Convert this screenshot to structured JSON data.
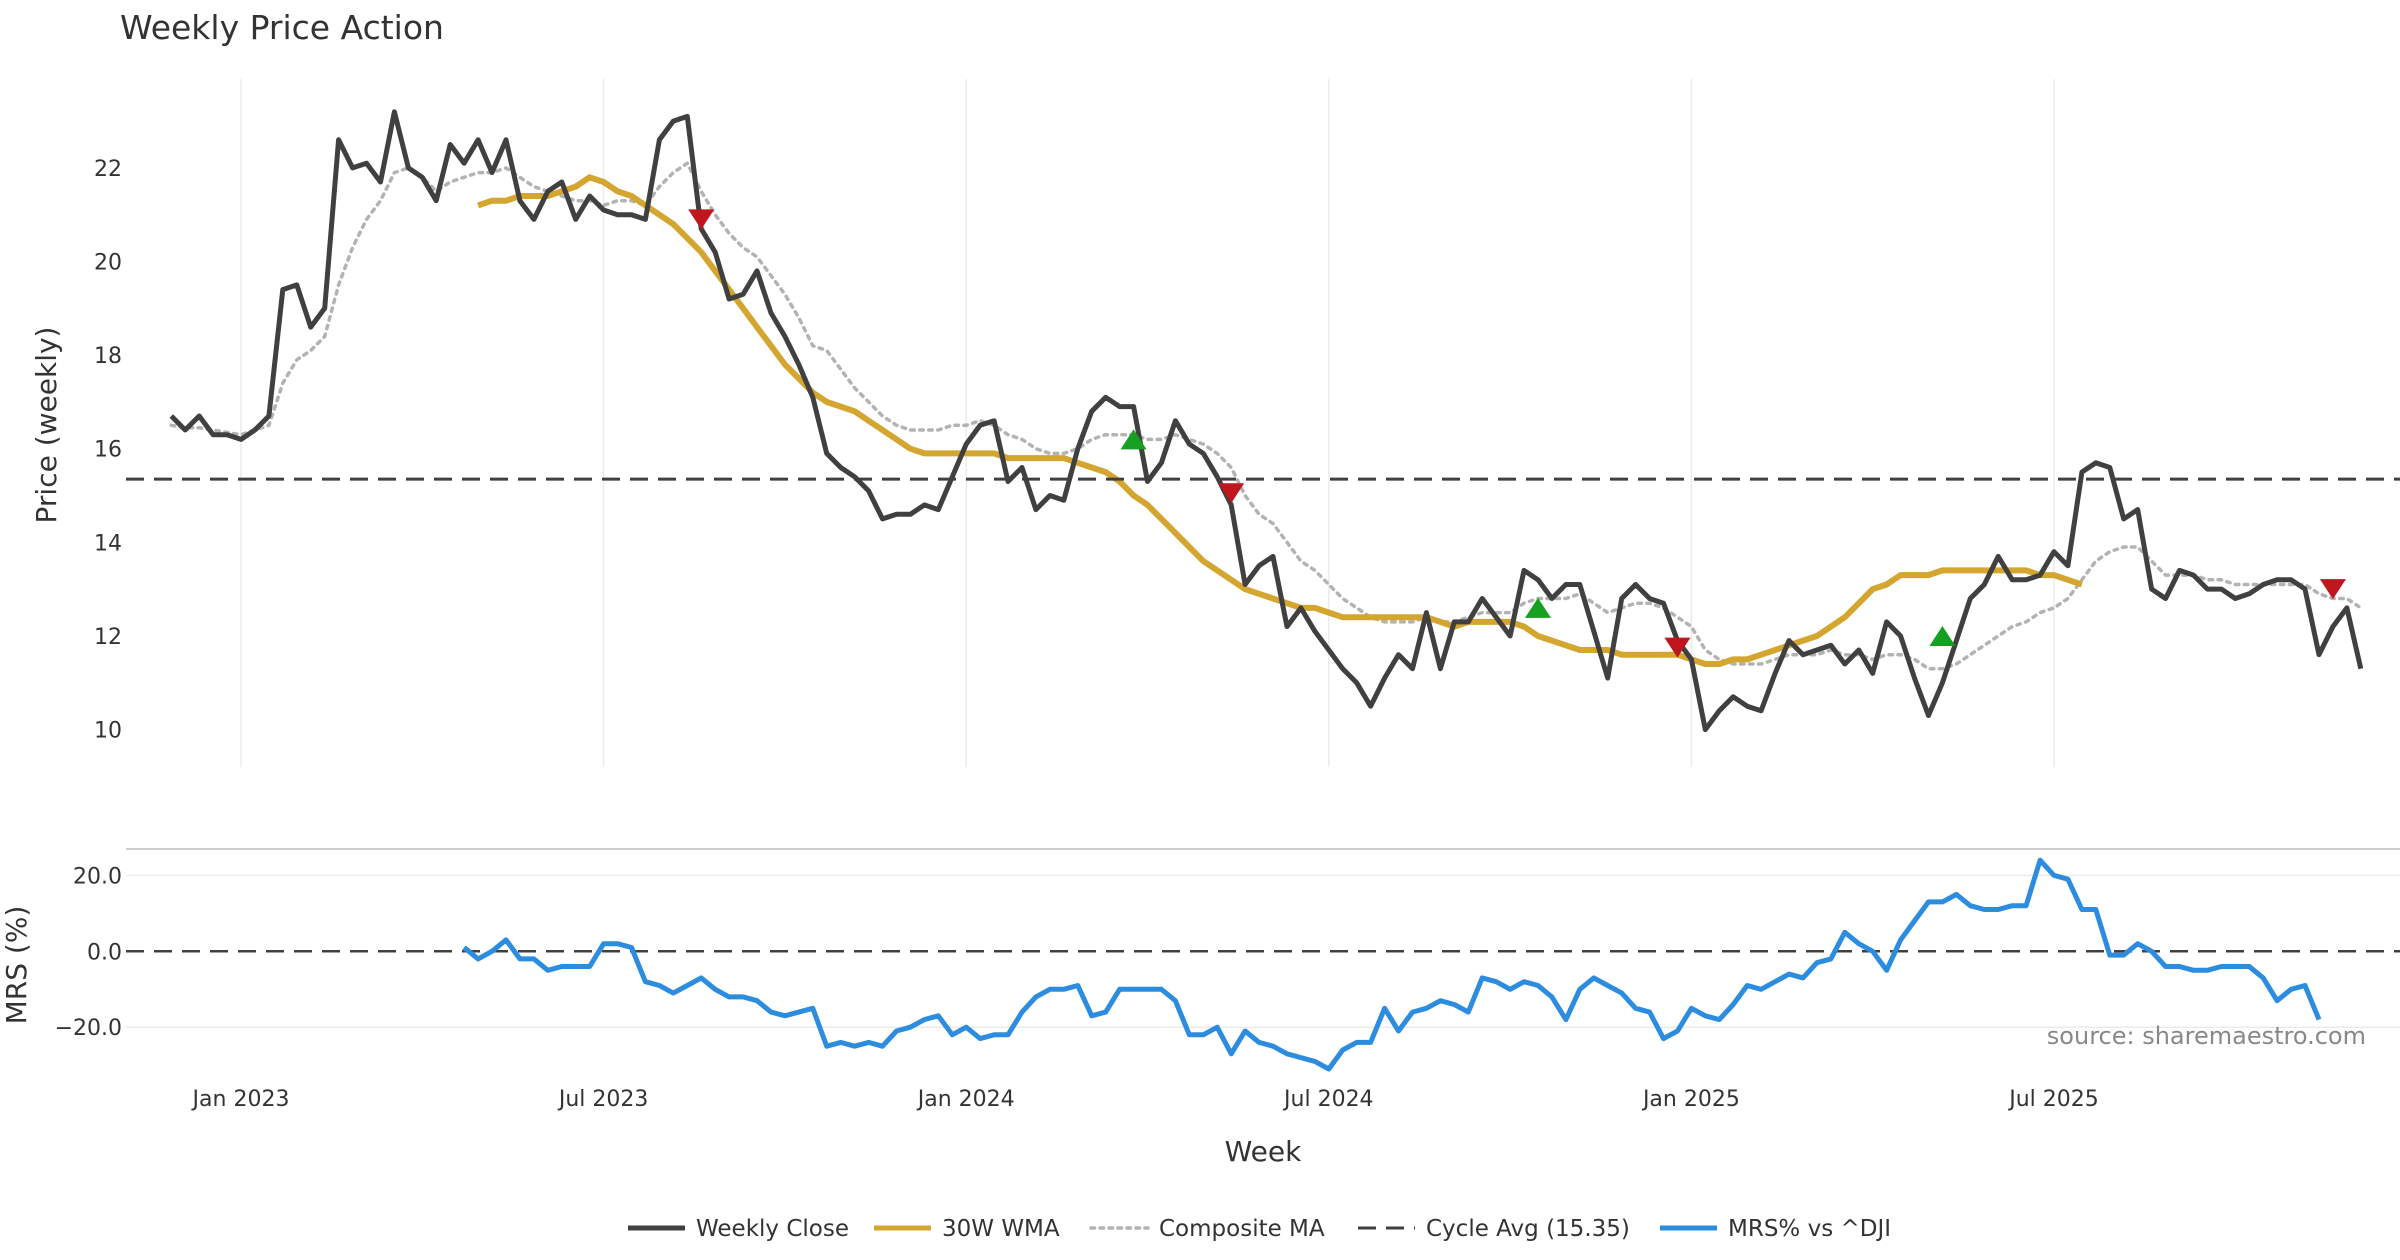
{
  "chart_data": [
    {
      "type": "line",
      "title": "Weekly Price Action",
      "ylabel": "Price (weekly)",
      "xlabel": "Week",
      "ylim": [
        9.2,
        23.9
      ],
      "yticks": [
        10,
        12,
        14,
        16,
        18,
        20,
        22
      ],
      "xticks": [
        {
          "label": "Jan 2023",
          "date": "2023-01-02"
        },
        {
          "label": "Jul 2023",
          "date": "2023-07-03"
        },
        {
          "label": "Jan 2024",
          "date": "2024-01-01"
        },
        {
          "label": "Jul 2024",
          "date": "2024-07-01"
        },
        {
          "label": "Jan 2025",
          "date": "2024-12-30"
        },
        {
          "label": "Jul 2025",
          "date": "2025-06-30"
        }
      ],
      "grid": true,
      "cycle_avg": 15.35,
      "series": [
        {
          "name": "Weekly Close",
          "color": "#404040",
          "start": "2022-11-28",
          "values": [
            16.7,
            16.4,
            16.7,
            16.3,
            16.3,
            16.2,
            16.4,
            16.7,
            19.4,
            19.5,
            18.6,
            19.0,
            22.6,
            22.0,
            22.1,
            21.7,
            23.2,
            22.0,
            21.8,
            21.3,
            22.5,
            22.1,
            22.6,
            21.9,
            22.6,
            21.3,
            20.9,
            21.5,
            21.7,
            20.9,
            21.4,
            21.1,
            21.0,
            21.0,
            20.9,
            22.6,
            23.0,
            23.1,
            20.7,
            20.2,
            19.2,
            19.3,
            19.8,
            18.9,
            18.4,
            17.8,
            17.1,
            15.9,
            15.6,
            15.4,
            15.1,
            14.5,
            14.6,
            14.6,
            14.8,
            14.7,
            15.4,
            16.1,
            16.5,
            16.6,
            15.3,
            15.6,
            14.7,
            15.0,
            14.9,
            16.0,
            16.8,
            17.1,
            16.9,
            16.9,
            15.3,
            15.7,
            16.6,
            16.1,
            15.9,
            15.4,
            14.8,
            13.1,
            13.5,
            13.7,
            12.2,
            12.6,
            12.1,
            11.7,
            11.3,
            11.0,
            10.5,
            11.1,
            11.6,
            11.3,
            12.5,
            11.3,
            12.3,
            12.3,
            12.8,
            12.4,
            12.0,
            13.4,
            13.2,
            12.8,
            13.1,
            13.1,
            12.1,
            11.1,
            12.8,
            13.1,
            12.8,
            12.7,
            11.9,
            11.5,
            10.0,
            10.4,
            10.7,
            10.5,
            10.4,
            11.2,
            11.9,
            11.6,
            11.7,
            11.8,
            11.4,
            11.7,
            11.2,
            12.3,
            12.0,
            11.1,
            10.3,
            11.0,
            11.9,
            12.8,
            13.1,
            13.7,
            13.2,
            13.2,
            13.3,
            13.8,
            13.5,
            15.5,
            15.7,
            15.6,
            14.5,
            14.7,
            13.0,
            12.8,
            13.4,
            13.3,
            13.0,
            13.0,
            12.8,
            12.9,
            13.1,
            13.2,
            13.2,
            13.0,
            11.6,
            12.2,
            12.6,
            11.3
          ]
        },
        {
          "name": "30W WMA",
          "color": "#D4A52F",
          "start": "2023-05-01",
          "values": [
            21.2,
            21.3,
            21.3,
            21.4,
            21.4,
            21.4,
            21.5,
            21.6,
            21.8,
            21.7,
            21.5,
            21.4,
            21.2,
            21.0,
            20.8,
            20.5,
            20.2,
            19.8,
            19.4,
            19.0,
            18.6,
            18.2,
            17.8,
            17.5,
            17.2,
            17.0,
            16.9,
            16.8,
            16.6,
            16.4,
            16.2,
            16.0,
            15.9,
            15.9,
            15.9,
            15.9,
            15.9,
            15.9,
            15.8,
            15.8,
            15.8,
            15.8,
            15.8,
            15.7,
            15.6,
            15.5,
            15.3,
            15.0,
            14.8,
            14.5,
            14.2,
            13.9,
            13.6,
            13.4,
            13.2,
            13.0,
            12.9,
            12.8,
            12.7,
            12.6,
            12.6,
            12.5,
            12.4,
            12.4,
            12.4,
            12.4,
            12.4,
            12.4,
            12.4,
            12.3,
            12.2,
            12.3,
            12.3,
            12.3,
            12.3,
            12.2,
            12.0,
            11.9,
            11.8,
            11.7,
            11.7,
            11.7,
            11.6,
            11.6,
            11.6,
            11.6,
            11.6,
            11.5,
            11.4,
            11.4,
            11.5,
            11.5,
            11.6,
            11.7,
            11.8,
            11.9,
            12.0,
            12.2,
            12.4,
            12.7,
            13.0,
            13.1,
            13.3,
            13.3,
            13.3,
            13.4,
            13.4,
            13.4,
            13.4,
            13.4,
            13.4,
            13.4,
            13.3,
            13.3,
            13.2,
            13.1
          ]
        },
        {
          "name": "Composite MA",
          "color": "#b3b3b3",
          "start": "2022-11-28",
          "values": [
            16.5,
            16.45,
            16.45,
            16.4,
            16.35,
            16.3,
            16.4,
            16.5,
            17.4,
            17.9,
            18.1,
            18.4,
            19.5,
            20.3,
            20.9,
            21.3,
            21.9,
            22.0,
            21.8,
            21.5,
            21.7,
            21.8,
            21.9,
            21.9,
            22.0,
            21.8,
            21.6,
            21.5,
            21.4,
            21.3,
            21.3,
            21.2,
            21.3,
            21.3,
            21.2,
            21.6,
            21.9,
            22.1,
            21.5,
            21.0,
            20.6,
            20.3,
            20.1,
            19.7,
            19.3,
            18.8,
            18.2,
            18.1,
            17.7,
            17.3,
            17.0,
            16.7,
            16.5,
            16.4,
            16.4,
            16.4,
            16.5,
            16.5,
            16.6,
            16.5,
            16.3,
            16.2,
            16.0,
            15.9,
            15.9,
            16.0,
            16.2,
            16.3,
            16.3,
            16.3,
            16.2,
            16.2,
            16.3,
            16.2,
            16.1,
            15.9,
            15.6,
            15.0,
            14.6,
            14.4,
            14.0,
            13.6,
            13.4,
            13.1,
            12.8,
            12.6,
            12.4,
            12.3,
            12.3,
            12.3,
            12.4,
            12.3,
            12.3,
            12.4,
            12.5,
            12.5,
            12.5,
            12.7,
            12.8,
            12.8,
            12.8,
            12.9,
            12.7,
            12.5,
            12.6,
            12.7,
            12.7,
            12.6,
            12.4,
            12.2,
            11.7,
            11.5,
            11.4,
            11.4,
            11.4,
            11.5,
            11.6,
            11.6,
            11.6,
            11.7,
            11.6,
            11.6,
            11.5,
            11.6,
            11.6,
            11.5,
            11.3,
            11.3,
            11.4,
            11.6,
            11.8,
            12.0,
            12.2,
            12.3,
            12.5,
            12.6,
            12.8,
            13.2,
            13.6,
            13.8,
            13.9,
            13.9,
            13.6,
            13.3,
            13.3,
            13.3,
            13.2,
            13.2,
            13.1,
            13.1,
            13.1,
            13.1,
            13.1,
            13.1,
            12.9,
            12.8,
            12.8,
            12.6
          ]
        }
      ],
      "signals": [
        {
          "type": "sell",
          "date": "2023-08-21",
          "value": 20.9,
          "color": "#C0161E"
        },
        {
          "type": "buy",
          "date": "2024-03-25",
          "value": 16.2,
          "color": "#16A021"
        },
        {
          "type": "sell",
          "date": "2024-05-13",
          "value": 15.05,
          "color": "#C0161E"
        },
        {
          "type": "buy",
          "date": "2024-10-14",
          "value": 12.6,
          "color": "#16A021"
        },
        {
          "type": "sell",
          "date": "2024-12-23",
          "value": 11.75,
          "color": "#C0161E"
        },
        {
          "type": "buy",
          "date": "2025-05-05",
          "value": 12.0,
          "color": "#16A021"
        },
        {
          "type": "sell",
          "date": "2025-11-17",
          "value": 13.0,
          "color": "#C0161E"
        }
      ]
    },
    {
      "type": "line",
      "ylabel": "MRS (%)",
      "ylim": [
        -31,
        28
      ],
      "yticks": [
        {
          "value": 20,
          "label": "20.0"
        },
        {
          "value": 0,
          "label": "0.0"
        },
        {
          "value": -20,
          "label": "−20.0"
        }
      ],
      "zero_line": 0,
      "source": "source: sharemaestro.com",
      "series": [
        {
          "name": "MRS% vs ^DJI",
          "color": "#2B8CE0",
          "start": "2023-04-24",
          "values": [
            1,
            -2,
            0,
            3,
            -2,
            -2,
            -5,
            -4,
            -4,
            -4,
            2,
            2,
            1,
            -8,
            -9,
            -11,
            -9,
            -7,
            -10,
            -12,
            -12,
            -13,
            -16,
            -17,
            -16,
            -15,
            -25,
            -24,
            -25,
            -24,
            -25,
            -21,
            -20,
            -18,
            -17,
            -22,
            -20,
            -23,
            -22,
            -22,
            -16,
            -12,
            -10,
            -10,
            -9,
            -17,
            -16,
            -10,
            -10,
            -10,
            -10,
            -13,
            -22,
            -22,
            -20,
            -27,
            -21,
            -24,
            -25,
            -27,
            -28,
            -29,
            -31,
            -26,
            -24,
            -24,
            -15,
            -21,
            -16,
            -15,
            -13,
            -14,
            -16,
            -7,
            -8,
            -10,
            -8,
            -9,
            -12,
            -18,
            -10,
            -7,
            -9,
            -11,
            -15,
            -16,
            -23,
            -21,
            -15,
            -17,
            -18,
            -14,
            -9,
            -10,
            -8,
            -6,
            -7,
            -3,
            -2,
            5,
            2,
            0,
            -5,
            3,
            8,
            13,
            13,
            15,
            12,
            11,
            11,
            12,
            12,
            24,
            20,
            19,
            11,
            11,
            -1,
            -1,
            2,
            0,
            -4,
            -4,
            -5,
            -5,
            -4,
            -4,
            -4,
            -7,
            -13,
            -10,
            -9,
            -18
          ]
        }
      ]
    }
  ],
  "legend": [
    {
      "label": "Weekly Close",
      "style": "solid",
      "color": "#404040"
    },
    {
      "label": "30W WMA",
      "style": "solid",
      "color": "#D4A52F"
    },
    {
      "label": "Composite MA",
      "style": "dotted",
      "color": "#b3b3b3"
    },
    {
      "label": "Cycle Avg (15.35)",
      "style": "dashed",
      "color": "#404040"
    },
    {
      "label": "MRS% vs ^DJI",
      "style": "solid",
      "color": "#2B8CE0"
    }
  ]
}
